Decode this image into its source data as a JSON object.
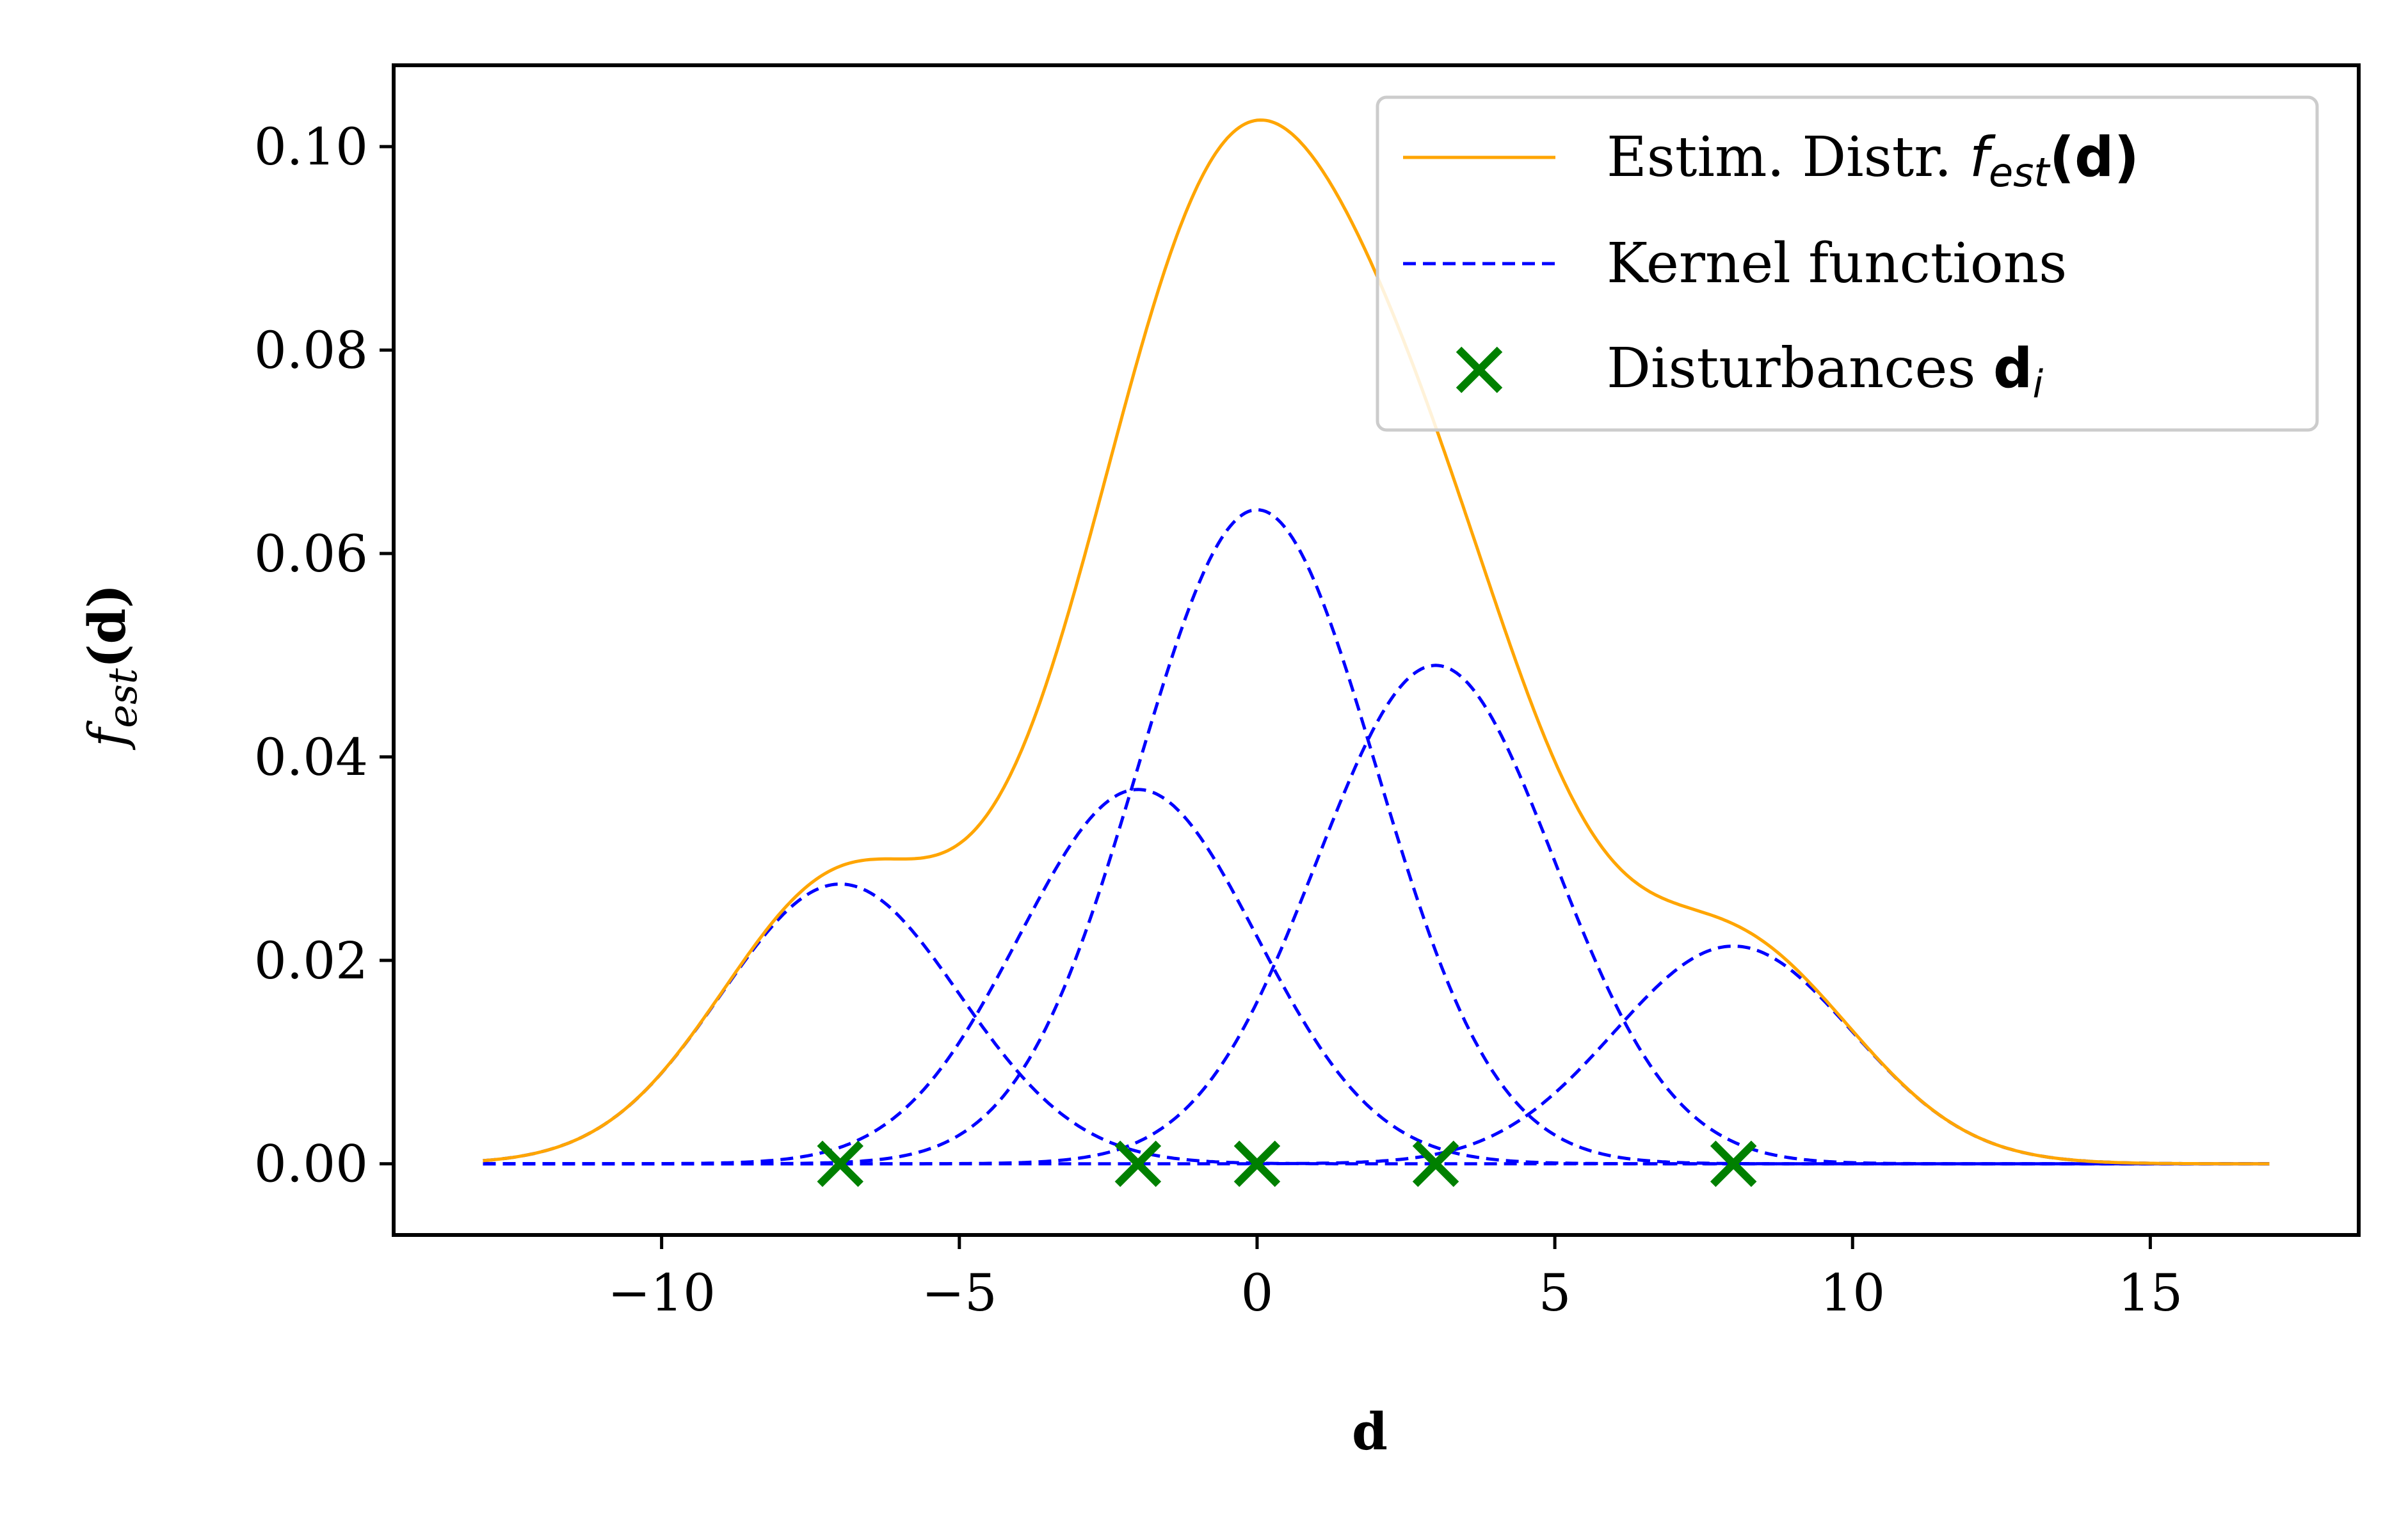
{
  "chart_data": {
    "type": "line",
    "title": "",
    "xlabel": "d",
    "ylabel_parts": {
      "base": "f",
      "sub": "est",
      "arg": "(d)"
    },
    "xlim": [
      -14.5,
      18.5
    ],
    "ylim": [
      -0.007,
      0.108
    ],
    "x_ticks": [
      -10,
      -5,
      0,
      5,
      10,
      15
    ],
    "x_tick_labels": [
      "−10",
      "−5",
      "0",
      "5",
      "10",
      "15"
    ],
    "y_ticks": [
      0.0,
      0.02,
      0.04,
      0.06,
      0.08,
      0.1
    ],
    "y_tick_labels": [
      "0.00",
      "0.02",
      "0.04",
      "0.06",
      "0.08",
      "0.10"
    ],
    "x_range": [
      -13,
      17
    ],
    "grid": false,
    "legend_position": "top-right",
    "legend": [
      {
        "label_prefix": "Estim. Distr. ",
        "label_math_base": "f",
        "label_math_sub": "est",
        "label_math_arg": "(d)"
      },
      {
        "label": "Kernel functions"
      },
      {
        "label_prefix": "Disturbances ",
        "label_math_base": "d",
        "label_math_sub": "i"
      }
    ],
    "colors": {
      "estimate": "#FFA500",
      "kernel": "#0000FF",
      "disturbance": "#008000"
    },
    "kernels": [
      {
        "center": -7,
        "amplitude": 0.0275,
        "sigma": 2.0
      },
      {
        "center": -2,
        "amplitude": 0.0368,
        "sigma": 2.0
      },
      {
        "center": 0,
        "amplitude": 0.0643,
        "sigma": 2.0
      },
      {
        "center": 3,
        "amplitude": 0.049,
        "sigma": 2.0
      },
      {
        "center": 8,
        "amplitude": 0.0214,
        "sigma": 2.0
      }
    ],
    "disturbances": [
      {
        "x": -7,
        "y": 0
      },
      {
        "x": -2,
        "y": 0
      },
      {
        "x": 0,
        "y": 0
      },
      {
        "x": 3,
        "y": 0
      },
      {
        "x": 8,
        "y": 0
      }
    ],
    "estimate_peak": {
      "x": 0,
      "y": 0.1029
    }
  }
}
